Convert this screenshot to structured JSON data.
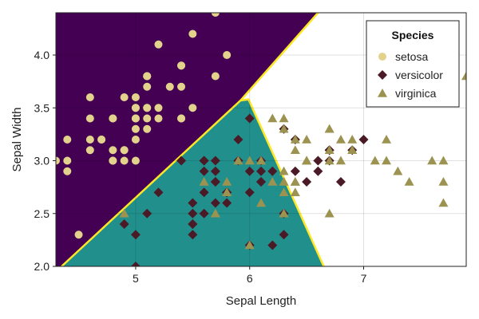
{
  "chart_data": {
    "type": "scatter",
    "xlabel": "Sepal Length",
    "ylabel": "Sepal Width",
    "xlim": [
      4.3,
      7.9
    ],
    "ylim": [
      2.0,
      4.4
    ],
    "xticks": [
      5,
      6,
      7
    ],
    "yticks": [
      2.0,
      2.5,
      3.0,
      3.5,
      4.0
    ],
    "xtick_labels": [
      "5",
      "6",
      "7"
    ],
    "ytick_labels": [
      "2.0",
      "2.5",
      "3.0",
      "3.5",
      "4.0"
    ],
    "grid": true,
    "legend": {
      "title": "Species",
      "placement": "top-right"
    },
    "regions": [
      {
        "name": "setosa",
        "color": "#440154",
        "polygon": [
          [
            4.3,
            2.0
          ],
          [
            4.35,
            2.0
          ],
          [
            5.92,
            3.57
          ],
          [
            6.6,
            4.4
          ],
          [
            4.3,
            4.4
          ]
        ]
      },
      {
        "name": "versicolor",
        "color": "#21908d",
        "polygon": [
          [
            4.35,
            2.0
          ],
          [
            6.65,
            2.0
          ],
          [
            5.99,
            3.58
          ],
          [
            5.92,
            3.57
          ]
        ]
      },
      {
        "name": "virginica",
        "color": "#ffffff",
        "polygon": [
          [
            6.65,
            2.0
          ],
          [
            7.9,
            2.0
          ],
          [
            7.9,
            4.4
          ],
          [
            6.6,
            4.4
          ],
          [
            5.99,
            3.58
          ]
        ]
      }
    ],
    "boundary_color": "#fde725",
    "series": [
      {
        "name": "setosa",
        "marker": "circle",
        "color": "#e3d28c",
        "points": [
          [
            5.1,
            3.5
          ],
          [
            4.9,
            3.0
          ],
          [
            4.7,
            3.2
          ],
          [
            4.6,
            3.1
          ],
          [
            5.0,
            3.6
          ],
          [
            5.4,
            3.9
          ],
          [
            4.6,
            3.4
          ],
          [
            5.0,
            3.4
          ],
          [
            4.4,
            2.9
          ],
          [
            4.9,
            3.1
          ],
          [
            5.4,
            3.7
          ],
          [
            4.8,
            3.4
          ],
          [
            4.8,
            3.0
          ],
          [
            4.3,
            3.0
          ],
          [
            5.8,
            4.0
          ],
          [
            5.7,
            4.4
          ],
          [
            5.4,
            3.9
          ],
          [
            5.1,
            3.5
          ],
          [
            5.7,
            3.8
          ],
          [
            5.1,
            3.8
          ],
          [
            5.4,
            3.4
          ],
          [
            5.1,
            3.7
          ],
          [
            4.6,
            3.6
          ],
          [
            5.1,
            3.3
          ],
          [
            4.8,
            3.4
          ],
          [
            5.0,
            3.0
          ],
          [
            5.0,
            3.4
          ],
          [
            5.2,
            3.5
          ],
          [
            5.2,
            3.4
          ],
          [
            4.7,
            3.2
          ],
          [
            4.8,
            3.1
          ],
          [
            5.4,
            3.4
          ],
          [
            5.2,
            4.1
          ],
          [
            5.5,
            4.2
          ],
          [
            4.9,
            3.1
          ],
          [
            5.0,
            3.2
          ],
          [
            5.5,
            3.5
          ],
          [
            4.9,
            3.6
          ],
          [
            4.4,
            3.0
          ],
          [
            5.1,
            3.4
          ],
          [
            5.0,
            3.5
          ],
          [
            4.5,
            2.3
          ],
          [
            4.4,
            3.2
          ],
          [
            5.0,
            3.5
          ],
          [
            5.1,
            3.8
          ],
          [
            4.8,
            3.0
          ],
          [
            5.1,
            3.8
          ],
          [
            4.6,
            3.2
          ],
          [
            5.3,
            3.7
          ],
          [
            5.0,
            3.3
          ]
        ]
      },
      {
        "name": "versicolor",
        "marker": "diamond",
        "color": "#4a1a26",
        "points": [
          [
            7.0,
            3.2
          ],
          [
            6.4,
            3.2
          ],
          [
            6.9,
            3.1
          ],
          [
            5.5,
            2.3
          ],
          [
            6.5,
            2.8
          ],
          [
            5.7,
            2.8
          ],
          [
            6.3,
            3.3
          ],
          [
            4.9,
            2.4
          ],
          [
            6.6,
            2.9
          ],
          [
            5.2,
            2.7
          ],
          [
            5.0,
            2.0
          ],
          [
            5.9,
            3.0
          ],
          [
            6.0,
            2.2
          ],
          [
            6.1,
            2.9
          ],
          [
            5.6,
            2.9
          ],
          [
            6.7,
            3.1
          ],
          [
            5.6,
            3.0
          ],
          [
            5.8,
            2.7
          ],
          [
            6.2,
            2.2
          ],
          [
            5.6,
            2.5
          ],
          [
            5.9,
            3.2
          ],
          [
            6.1,
            2.8
          ],
          [
            6.3,
            2.5
          ],
          [
            6.1,
            2.8
          ],
          [
            6.4,
            2.9
          ],
          [
            6.6,
            3.0
          ],
          [
            6.8,
            2.8
          ],
          [
            6.7,
            3.0
          ],
          [
            6.0,
            2.9
          ],
          [
            5.7,
            2.6
          ],
          [
            5.5,
            2.4
          ],
          [
            5.5,
            2.4
          ],
          [
            5.8,
            2.7
          ],
          [
            6.0,
            2.7
          ],
          [
            5.4,
            3.0
          ],
          [
            6.0,
            3.4
          ],
          [
            6.7,
            3.1
          ],
          [
            6.3,
            2.3
          ],
          [
            5.6,
            3.0
          ],
          [
            5.5,
            2.5
          ],
          [
            5.5,
            2.6
          ],
          [
            6.1,
            3.0
          ],
          [
            5.8,
            2.6
          ],
          [
            5.0,
            2.3
          ],
          [
            5.6,
            2.7
          ],
          [
            5.7,
            3.0
          ],
          [
            5.7,
            2.9
          ],
          [
            6.2,
            2.9
          ],
          [
            5.1,
            2.5
          ],
          [
            5.7,
            2.8
          ]
        ]
      },
      {
        "name": "virginica",
        "marker": "triangle",
        "color": "#9c9350",
        "points": [
          [
            6.3,
            3.3
          ],
          [
            5.8,
            2.7
          ],
          [
            7.1,
            3.0
          ],
          [
            6.3,
            2.9
          ],
          [
            6.5,
            3.0
          ],
          [
            7.6,
            3.0
          ],
          [
            4.9,
            2.5
          ],
          [
            7.3,
            2.9
          ],
          [
            6.7,
            2.5
          ],
          [
            7.2,
            3.6
          ],
          [
            6.5,
            3.2
          ],
          [
            6.4,
            2.7
          ],
          [
            6.8,
            3.0
          ],
          [
            5.7,
            2.5
          ],
          [
            5.8,
            2.8
          ],
          [
            6.4,
            3.2
          ],
          [
            6.5,
            3.0
          ],
          [
            7.7,
            3.8
          ],
          [
            7.7,
            2.6
          ],
          [
            6.0,
            2.2
          ],
          [
            6.9,
            3.2
          ],
          [
            5.6,
            2.8
          ],
          [
            7.7,
            2.8
          ],
          [
            6.3,
            2.7
          ],
          [
            6.7,
            3.3
          ],
          [
            7.2,
            3.2
          ],
          [
            6.2,
            2.8
          ],
          [
            6.1,
            3.0
          ],
          [
            6.4,
            2.8
          ],
          [
            7.2,
            3.0
          ],
          [
            7.4,
            2.8
          ],
          [
            7.9,
            3.8
          ],
          [
            6.4,
            2.8
          ],
          [
            6.3,
            2.8
          ],
          [
            6.1,
            2.6
          ],
          [
            7.7,
            3.0
          ],
          [
            6.3,
            3.4
          ],
          [
            6.4,
            3.1
          ],
          [
            6.0,
            3.0
          ],
          [
            6.9,
            3.1
          ],
          [
            6.7,
            3.1
          ],
          [
            6.9,
            3.1
          ],
          [
            5.8,
            2.7
          ],
          [
            6.8,
            3.2
          ],
          [
            6.7,
            3.3
          ],
          [
            6.7,
            3.0
          ],
          [
            6.3,
            2.5
          ],
          [
            6.5,
            3.0
          ],
          [
            6.2,
            3.4
          ],
          [
            5.9,
            3.0
          ]
        ]
      }
    ]
  }
}
